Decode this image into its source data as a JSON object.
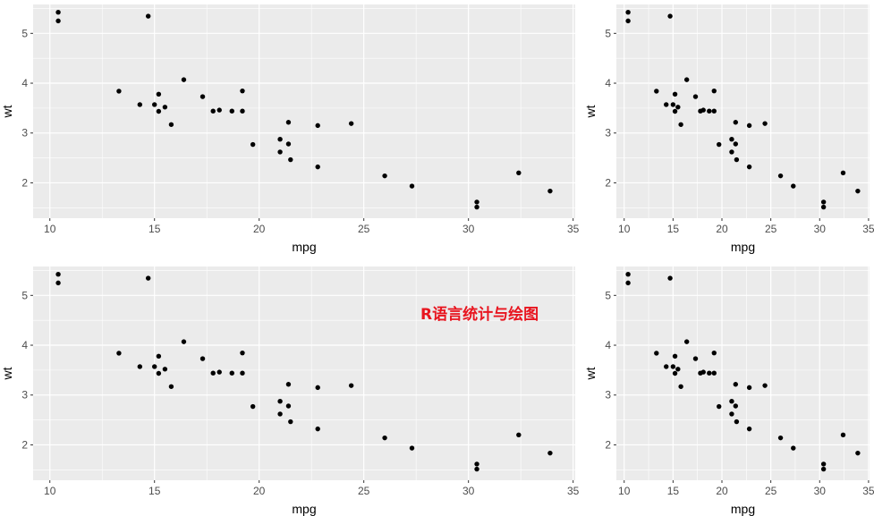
{
  "watermark": "R语言统计与绘图",
  "colors": {
    "panel_bg": "#ebebeb",
    "grid": "#ffffff",
    "point": "#000000",
    "tick_text": "#4d4d4d",
    "watermark": "#e8151f"
  },
  "chart_data": [
    {
      "type": "scatter",
      "xlabel": "mpg",
      "ylabel": "wt",
      "xlim": [
        9.2,
        35.1
      ],
      "ylim": [
        1.29,
        5.58
      ],
      "xticks": [
        10,
        15,
        20,
        25,
        30,
        35
      ],
      "yticks": [
        2,
        3,
        4,
        5
      ],
      "grid": true,
      "legend": "none",
      "series_ref": "mtcars"
    },
    {
      "type": "scatter",
      "xlabel": "mpg",
      "ylabel": "wt",
      "xlim": [
        9.2,
        35.1
      ],
      "ylim": [
        1.29,
        5.58
      ],
      "xticks": [
        10,
        15,
        20,
        25,
        30,
        35
      ],
      "yticks": [
        2,
        3,
        4,
        5
      ],
      "grid": true,
      "legend": "none",
      "series_ref": "mtcars"
    },
    {
      "type": "scatter",
      "xlabel": "mpg",
      "ylabel": "wt",
      "xlim": [
        9.2,
        35.1
      ],
      "ylim": [
        1.29,
        5.58
      ],
      "xticks": [
        10,
        15,
        20,
        25,
        30,
        35
      ],
      "yticks": [
        2,
        3,
        4,
        5
      ],
      "grid": true,
      "legend": "none",
      "series_ref": "mtcars"
    },
    {
      "type": "scatter",
      "xlabel": "mpg",
      "ylabel": "wt",
      "xlim": [
        9.2,
        35.1
      ],
      "ylim": [
        1.29,
        5.58
      ],
      "xticks": [
        10,
        15,
        20,
        25,
        30,
        35
      ],
      "yticks": [
        2,
        3,
        4,
        5
      ],
      "grid": true,
      "legend": "none",
      "series_ref": "mtcars"
    }
  ],
  "mtcars": {
    "x": [
      21.0,
      21.0,
      22.8,
      21.4,
      18.7,
      18.1,
      14.3,
      24.4,
      22.8,
      19.2,
      17.8,
      16.4,
      17.3,
      15.2,
      10.4,
      10.4,
      14.7,
      32.4,
      30.4,
      33.9,
      21.5,
      15.5,
      15.2,
      13.3,
      19.2,
      27.3,
      26.0,
      30.4,
      15.8,
      19.7,
      15.0,
      21.4
    ],
    "y": [
      2.62,
      2.875,
      2.32,
      3.215,
      3.44,
      3.46,
      3.57,
      3.19,
      3.15,
      3.44,
      3.44,
      4.07,
      3.73,
      3.78,
      5.25,
      5.424,
      5.345,
      2.2,
      1.615,
      1.835,
      2.465,
      3.52,
      3.435,
      3.84,
      3.845,
      1.935,
      2.14,
      1.513,
      3.17,
      2.77,
      3.57,
      2.78
    ]
  }
}
